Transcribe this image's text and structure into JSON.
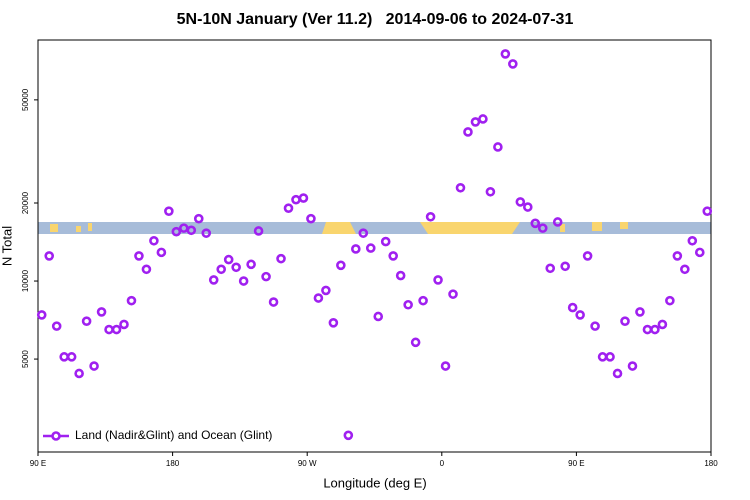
{
  "chart_data": {
    "type": "scatter",
    "title": "5N-10N January (Ver 11.2)   2014-09-06 to 2024-07-31",
    "xlabel": "Longitude (deg E)",
    "ylabel": "N Total",
    "xlim": [
      90,
      540
    ],
    "xticks": [
      {
        "value": 90,
        "label": "90 E"
      },
      180,
      {
        "value": 270,
        "label": "90 W"
      },
      {
        "value": 360,
        "label": "0"
      },
      {
        "value": 450,
        "label": "90 E"
      },
      {
        "value": 540,
        "label": "180"
      }
    ],
    "ylim": [
      2190,
      85100
    ],
    "yticks": [
      5000,
      10000,
      20000,
      50000
    ],
    "ylog": true,
    "grid": false,
    "legend": "bottom-left",
    "series": [
      {
        "name": "Land (Nadir&Glint) and Ocean (Glint)",
        "color": "#a020f0",
        "x": [
          92.5,
          97.5,
          102.5,
          107.5,
          112.5,
          117.5,
          122.5,
          127.5,
          132.5,
          137.5,
          142.5,
          147.5,
          152.5,
          157.5,
          162.5,
          167.5,
          172.5,
          177.5,
          182.5,
          187.5,
          192.5,
          197.5,
          202.5,
          207.5,
          212.5,
          217.5,
          222.5,
          227.5,
          232.5,
          237.5,
          242.5,
          247.5,
          252.5,
          257.5,
          262.5,
          267.5,
          272.5,
          277.5,
          282.5,
          287.5,
          292.5,
          297.5,
          302.5,
          307.5,
          312.5,
          317.5,
          322.5,
          327.5,
          332.5,
          337.5,
          342.5,
          347.5,
          352.5,
          357.5,
          362.5,
          367.5,
          372.5,
          377.5,
          382.5,
          387.5,
          392.5,
          397.5,
          402.5,
          407.5,
          412.5,
          417.5,
          422.5,
          427.5,
          432.5,
          437.5,
          442.5,
          447.5,
          452.5,
          457.5,
          462.5,
          467.5,
          472.5,
          477.5,
          482.5,
          487.5,
          492.5,
          497.5,
          502.5,
          507.5,
          512.5,
          517.5,
          522.5,
          527.5,
          532.5,
          537.5
        ],
        "values": [
          7400,
          12500,
          6700,
          5100,
          5100,
          4400,
          7000,
          4700,
          7600,
          6500,
          6500,
          6800,
          8400,
          12500,
          11100,
          14300,
          12900,
          18600,
          15500,
          16000,
          15700,
          17400,
          15300,
          10100,
          11100,
          12100,
          11300,
          10000,
          11600,
          15600,
          10400,
          8300,
          12200,
          19100,
          20600,
          20900,
          17400,
          8600,
          9200,
          6900,
          11500,
          2540,
          13300,
          15300,
          13400,
          7300,
          14200,
          12500,
          10500,
          8100,
          5800,
          8400,
          17700,
          10100,
          4700,
          8900,
          22900,
          37600,
          41100,
          42200,
          22100,
          32900,
          75200,
          68800,
          20200,
          19300,
          16700,
          16000,
          11200,
          16900,
          11400,
          7900,
          7400,
          12500,
          6700,
          5100,
          5100,
          4400,
          7000,
          4700,
          7600,
          6500,
          6500,
          6800,
          8400,
          12500,
          11100,
          14300,
          12900,
          18600
        ]
      }
    ]
  }
}
